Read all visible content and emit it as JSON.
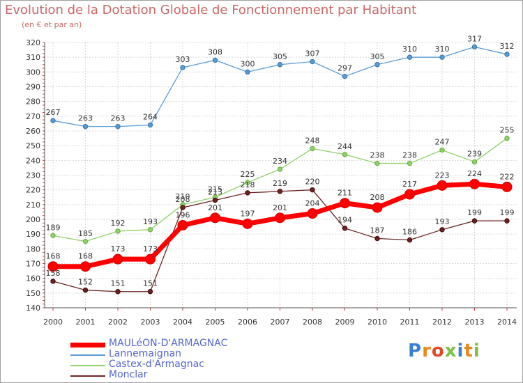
{
  "header": {
    "title": "Evolution de la Dotation Globale de Fonctionnement par Habitant",
    "subtitle": "(en € et par an)"
  },
  "logo": {
    "text": "Proxiti"
  },
  "chart_data": {
    "type": "line",
    "title": "Evolution de la Dotation Globale de Fonctionnement par Habitant",
    "subtitle": "(en € et par an)",
    "xlabel": "",
    "ylabel": "",
    "x": [
      "2000",
      "2001",
      "2002",
      "2003",
      "2004",
      "2005",
      "2006",
      "2007",
      "2008",
      "2009",
      "2010",
      "2011",
      "2012",
      "2013",
      "2014"
    ],
    "ylim": [
      140,
      320
    ],
    "yticks": [
      140,
      150,
      160,
      170,
      180,
      190,
      200,
      210,
      220,
      230,
      240,
      250,
      260,
      270,
      280,
      290,
      300,
      310,
      320
    ],
    "grid": true,
    "legend_position": "bottom-left",
    "series": [
      {
        "name": "Lannemaignan",
        "color": "#5b9bd5",
        "values": [
          267,
          263,
          263,
          264,
          303,
          308,
          300,
          305,
          307,
          297,
          305,
          310,
          310,
          317,
          312
        ]
      },
      {
        "name": "Castex-d'Armagnac",
        "color": "#8fd16a",
        "values": [
          189,
          185,
          192,
          193,
          210,
          215,
          225,
          234,
          248,
          244,
          238,
          238,
          247,
          239,
          255
        ]
      },
      {
        "name": "Monclar",
        "color": "#6b2424",
        "values": [
          158,
          152,
          151,
          151,
          208,
          213,
          218,
          219,
          220,
          194,
          187,
          186,
          193,
          199,
          199
        ]
      },
      {
        "name": "MAULéON-D'ARMAGNAC",
        "color": "#ff0000",
        "values": [
          168,
          168,
          173,
          173,
          196,
          201,
          197,
          201,
          204,
          211,
          208,
          217,
          223,
          224,
          222
        ]
      }
    ]
  }
}
